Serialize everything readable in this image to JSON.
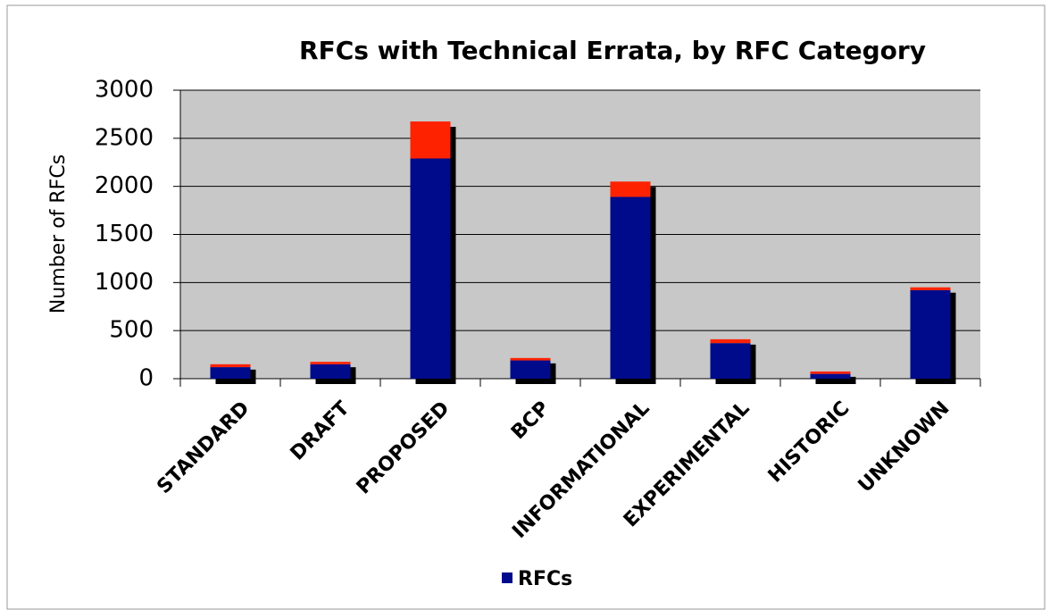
{
  "chart_data": {
    "type": "bar",
    "stacked": true,
    "title": "RFCs with Technical Errata, by RFC Category",
    "y_label": "Number of RFCs",
    "categories": [
      "STANDARD",
      "DRAFT",
      "PROPOSED",
      "BCP",
      "INFORMATIONAL",
      "EXPERIMENTAL",
      "HISTORIC",
      "UNKNOWN"
    ],
    "series": [
      {
        "name": "RFCs",
        "color": "#000b8c",
        "values": [
          120,
          150,
          2290,
          190,
          1890,
          370,
          50,
          920
        ]
      },
      {
        "color": "#ff2200",
        "values": [
          30,
          25,
          385,
          25,
          160,
          40,
          25,
          30
        ]
      }
    ],
    "ylim": [
      0,
      3000
    ],
    "yticks": [
      0,
      500,
      1000,
      1500,
      2000,
      2500,
      3000
    ],
    "grid": true
  }
}
